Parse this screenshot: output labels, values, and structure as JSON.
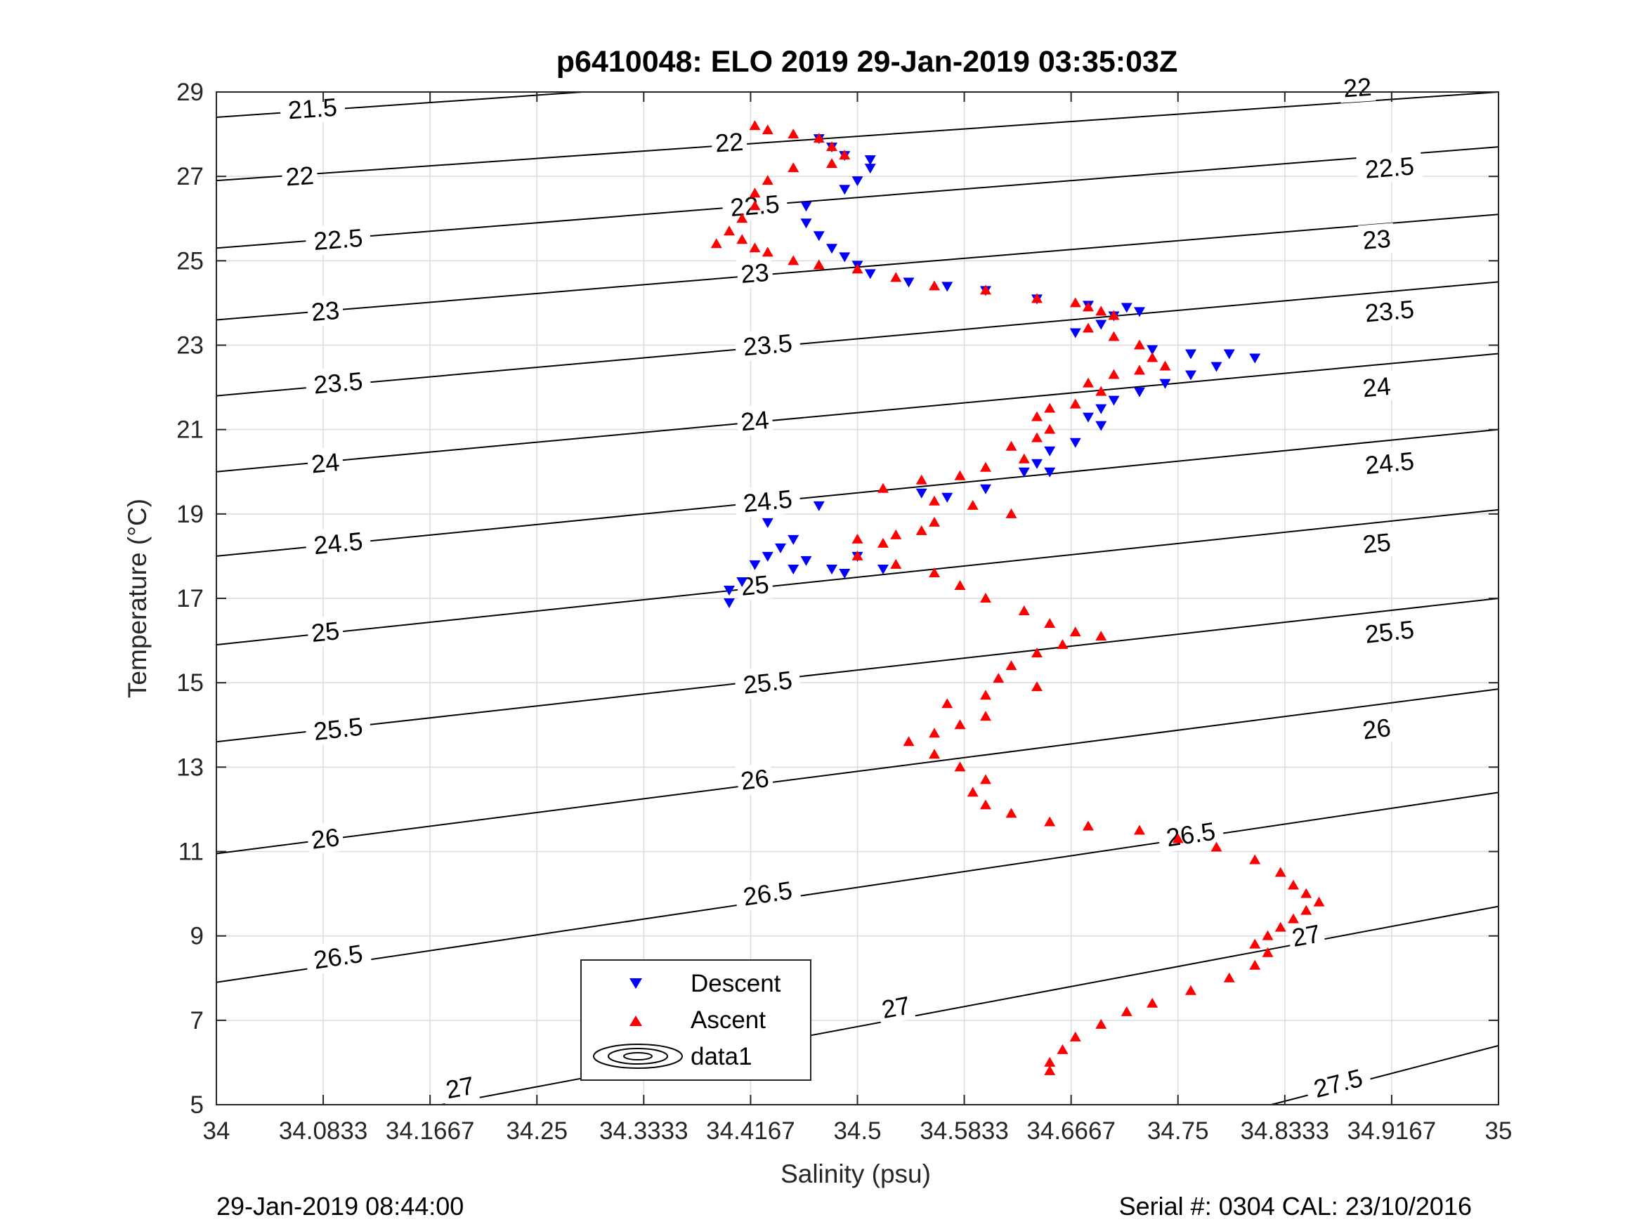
{
  "footer": {
    "left": "29-Jan-2019 08:44:00",
    "right": "Serial #: 0304  CAL: 23/10/2016"
  },
  "chart_data": {
    "type": "scatter",
    "title": "p6410048: ELO 2019 29-Jan-2019 03:35:03Z",
    "xlabel": "Salinity (psu)",
    "ylabel": "Temperature (°C)",
    "xlim": [
      34,
      35
    ],
    "ylim": [
      5,
      29
    ],
    "x_ticks": [
      "34",
      "34.0833",
      "34.1667",
      "34.25",
      "34.3333",
      "34.4167",
      "34.5",
      "34.5833",
      "34.6667",
      "34.75",
      "34.8333",
      "34.9167",
      "35"
    ],
    "y_ticks": [
      "5",
      "7",
      "9",
      "11",
      "13",
      "15",
      "17",
      "19",
      "21",
      "23",
      "25",
      "27",
      "29"
    ],
    "grid": true,
    "legend": {
      "placement": "bottom-center"
    },
    "colors": {
      "descent": "#0000ff",
      "ascent": "#ff0000",
      "contour": "#000000",
      "grid": "#dcdcdc"
    },
    "series": [
      {
        "name": "Descent",
        "marker": "triangle-down",
        "points": [
          [
            34.47,
            27.9
          ],
          [
            34.48,
            27.7
          ],
          [
            34.49,
            27.5
          ],
          [
            34.51,
            27.4
          ],
          [
            34.51,
            27.2
          ],
          [
            34.5,
            26.9
          ],
          [
            34.49,
            26.7
          ],
          [
            34.46,
            26.3
          ],
          [
            34.46,
            25.9
          ],
          [
            34.47,
            25.6
          ],
          [
            34.48,
            25.3
          ],
          [
            34.49,
            25.1
          ],
          [
            34.5,
            24.9
          ],
          [
            34.51,
            24.7
          ],
          [
            34.54,
            24.5
          ],
          [
            34.57,
            24.4
          ],
          [
            34.6,
            24.3
          ],
          [
            34.64,
            24.1
          ],
          [
            34.68,
            23.95
          ],
          [
            34.71,
            23.9
          ],
          [
            34.72,
            23.8
          ],
          [
            34.7,
            23.7
          ],
          [
            34.69,
            23.5
          ],
          [
            34.67,
            23.3
          ],
          [
            34.73,
            22.9
          ],
          [
            34.76,
            22.8
          ],
          [
            34.79,
            22.8
          ],
          [
            34.81,
            22.7
          ],
          [
            34.78,
            22.5
          ],
          [
            34.76,
            22.3
          ],
          [
            34.74,
            22.1
          ],
          [
            34.72,
            21.9
          ],
          [
            34.7,
            21.7
          ],
          [
            34.69,
            21.5
          ],
          [
            34.68,
            21.3
          ],
          [
            34.69,
            21.1
          ],
          [
            34.67,
            20.7
          ],
          [
            34.65,
            20.5
          ],
          [
            34.64,
            20.2
          ],
          [
            34.63,
            20.0
          ],
          [
            34.65,
            20.0
          ],
          [
            34.6,
            19.6
          ],
          [
            34.57,
            19.4
          ],
          [
            34.55,
            19.5
          ],
          [
            34.47,
            19.2
          ],
          [
            34.43,
            18.8
          ],
          [
            34.45,
            18.4
          ],
          [
            34.44,
            18.2
          ],
          [
            34.43,
            18.0
          ],
          [
            34.46,
            17.9
          ],
          [
            34.42,
            17.8
          ],
          [
            34.45,
            17.7
          ],
          [
            34.48,
            17.7
          ],
          [
            34.49,
            17.6
          ],
          [
            34.52,
            17.7
          ],
          [
            34.5,
            18.0
          ],
          [
            34.41,
            17.4
          ],
          [
            34.4,
            17.2
          ],
          [
            34.4,
            16.9
          ]
        ]
      },
      {
        "name": "Ascent",
        "marker": "triangle-up",
        "points": [
          [
            34.42,
            28.2
          ],
          [
            34.43,
            28.1
          ],
          [
            34.45,
            28.0
          ],
          [
            34.47,
            27.9
          ],
          [
            34.48,
            27.7
          ],
          [
            34.49,
            27.5
          ],
          [
            34.48,
            27.3
          ],
          [
            34.45,
            27.2
          ],
          [
            34.43,
            26.9
          ],
          [
            34.42,
            26.6
          ],
          [
            34.42,
            26.3
          ],
          [
            34.41,
            26.0
          ],
          [
            34.4,
            25.7
          ],
          [
            34.41,
            25.5
          ],
          [
            34.39,
            25.4
          ],
          [
            34.42,
            25.3
          ],
          [
            34.43,
            25.2
          ],
          [
            34.45,
            25.0
          ],
          [
            34.47,
            24.9
          ],
          [
            34.5,
            24.8
          ],
          [
            34.53,
            24.6
          ],
          [
            34.56,
            24.4
          ],
          [
            34.6,
            24.3
          ],
          [
            34.64,
            24.1
          ],
          [
            34.67,
            24.0
          ],
          [
            34.68,
            23.9
          ],
          [
            34.69,
            23.8
          ],
          [
            34.7,
            23.7
          ],
          [
            34.68,
            23.4
          ],
          [
            34.7,
            23.2
          ],
          [
            34.72,
            23.0
          ],
          [
            34.73,
            22.7
          ],
          [
            34.74,
            22.5
          ],
          [
            34.72,
            22.4
          ],
          [
            34.7,
            22.3
          ],
          [
            34.68,
            22.1
          ],
          [
            34.69,
            21.9
          ],
          [
            34.67,
            21.6
          ],
          [
            34.65,
            21.5
          ],
          [
            34.64,
            21.3
          ],
          [
            34.65,
            21.0
          ],
          [
            34.64,
            20.8
          ],
          [
            34.62,
            20.6
          ],
          [
            34.63,
            20.3
          ],
          [
            34.6,
            20.1
          ],
          [
            34.58,
            19.9
          ],
          [
            34.55,
            19.8
          ],
          [
            34.52,
            19.6
          ],
          [
            34.56,
            19.3
          ],
          [
            34.59,
            19.2
          ],
          [
            34.62,
            19.0
          ],
          [
            34.56,
            18.8
          ],
          [
            34.55,
            18.6
          ],
          [
            34.53,
            18.5
          ],
          [
            34.52,
            18.3
          ],
          [
            34.5,
            18.4
          ],
          [
            34.5,
            18.0
          ],
          [
            34.53,
            17.8
          ],
          [
            34.56,
            17.6
          ],
          [
            34.58,
            17.3
          ],
          [
            34.6,
            17.0
          ],
          [
            34.63,
            16.7
          ],
          [
            34.65,
            16.4
          ],
          [
            34.67,
            16.2
          ],
          [
            34.69,
            16.1
          ],
          [
            34.66,
            15.9
          ],
          [
            34.64,
            15.7
          ],
          [
            34.62,
            15.4
          ],
          [
            34.61,
            15.1
          ],
          [
            34.64,
            14.9
          ],
          [
            34.6,
            14.7
          ],
          [
            34.57,
            14.5
          ],
          [
            34.6,
            14.2
          ],
          [
            34.58,
            14.0
          ],
          [
            34.56,
            13.8
          ],
          [
            34.54,
            13.6
          ],
          [
            34.56,
            13.3
          ],
          [
            34.58,
            13.0
          ],
          [
            34.6,
            12.7
          ],
          [
            34.59,
            12.4
          ],
          [
            34.6,
            12.1
          ],
          [
            34.62,
            11.9
          ],
          [
            34.65,
            11.7
          ],
          [
            34.68,
            11.6
          ],
          [
            34.72,
            11.5
          ],
          [
            34.75,
            11.3
          ],
          [
            34.78,
            11.1
          ],
          [
            34.81,
            10.8
          ],
          [
            34.83,
            10.5
          ],
          [
            34.84,
            10.2
          ],
          [
            34.85,
            10.0
          ],
          [
            34.86,
            9.8
          ],
          [
            34.85,
            9.6
          ],
          [
            34.84,
            9.4
          ],
          [
            34.83,
            9.2
          ],
          [
            34.82,
            9.0
          ],
          [
            34.81,
            8.8
          ],
          [
            34.82,
            8.6
          ],
          [
            34.81,
            8.3
          ],
          [
            34.79,
            8.0
          ],
          [
            34.76,
            7.7
          ],
          [
            34.73,
            7.4
          ],
          [
            34.71,
            7.2
          ],
          [
            34.69,
            6.9
          ],
          [
            34.67,
            6.6
          ],
          [
            34.66,
            6.3
          ],
          [
            34.65,
            6.0
          ],
          [
            34.65,
            5.8
          ]
        ]
      }
    ],
    "legend_entries": [
      {
        "label": "Descent",
        "series": "Descent"
      },
      {
        "label": "Ascent",
        "series": "Ascent"
      },
      {
        "label": "data1",
        "series": "contour"
      }
    ],
    "isopycnals": {
      "label": "data1",
      "lines": [
        {
          "value": "21.5",
          "y_at_34": 28.4,
          "y_at_35": 30.5
        },
        {
          "value": "22",
          "y_at_34": 26.9,
          "y_at_35": 29.0
        },
        {
          "value": "22.5",
          "y_at_34": 25.3,
          "y_at_35": 27.7
        },
        {
          "value": "23",
          "y_at_34": 23.6,
          "y_at_35": 26.1
        },
        {
          "value": "23.5",
          "y_at_34": 21.8,
          "y_at_35": 24.5
        },
        {
          "value": "24",
          "y_at_34": 20.0,
          "y_at_35": 22.8
        },
        {
          "value": "24.5",
          "y_at_34": 18.0,
          "y_at_35": 21.0
        },
        {
          "value": "25",
          "y_at_34": 15.9,
          "y_at_35": 19.1
        },
        {
          "value": "25.5",
          "y_at_34": 13.6,
          "y_at_35": 17.0
        },
        {
          "value": "26",
          "y_at_34": 10.95,
          "y_at_35": 14.85
        },
        {
          "value": "26.5",
          "y_at_34": 7.9,
          "y_at_35": 12.4
        },
        {
          "value": "27",
          "y_at_34": 4.0,
          "y_at_35": 9.7
        },
        {
          "value": "27.5",
          "y_at_34": -1.5,
          "y_at_35": 6.4
        }
      ],
      "labels": [
        {
          "text": "21.5",
          "s": 34.075,
          "t": 28.6
        },
        {
          "text": "22",
          "s": 34.4,
          "t": 27.8
        },
        {
          "text": "22",
          "s": 34.89,
          "t": 29.1
        },
        {
          "text": "22",
          "s": 34.065,
          "t": 27.0
        },
        {
          "text": "22.5",
          "s": 34.42,
          "t": 26.3
        },
        {
          "text": "22.5",
          "s": 34.915,
          "t": 27.2
        },
        {
          "text": "22.5",
          "s": 34.095,
          "t": 25.5
        },
        {
          "text": "23",
          "s": 34.42,
          "t": 24.7
        },
        {
          "text": "23",
          "s": 34.905,
          "t": 25.5
        },
        {
          "text": "23",
          "s": 34.085,
          "t": 23.8
        },
        {
          "text": "23.5",
          "s": 34.43,
          "t": 23.0
        },
        {
          "text": "23.5",
          "s": 34.915,
          "t": 23.8
        },
        {
          "text": "23.5",
          "s": 34.095,
          "t": 22.1
        },
        {
          "text": "24",
          "s": 34.42,
          "t": 21.2
        },
        {
          "text": "24",
          "s": 34.905,
          "t": 22.0
        },
        {
          "text": "24",
          "s": 34.085,
          "t": 20.2
        },
        {
          "text": "24.5",
          "s": 34.43,
          "t": 19.3
        },
        {
          "text": "24.5",
          "s": 34.915,
          "t": 20.2
        },
        {
          "text": "24.5",
          "s": 34.095,
          "t": 18.3
        },
        {
          "text": "25",
          "s": 34.42,
          "t": 17.3
        },
        {
          "text": "25",
          "s": 34.905,
          "t": 18.3
        },
        {
          "text": "25",
          "s": 34.085,
          "t": 16.2
        },
        {
          "text": "25.5",
          "s": 34.43,
          "t": 15.0
        },
        {
          "text": "25.5",
          "s": 34.915,
          "t": 16.2
        },
        {
          "text": "25.5",
          "s": 34.095,
          "t": 13.9
        },
        {
          "text": "26",
          "s": 34.42,
          "t": 12.7
        },
        {
          "text": "26",
          "s": 34.905,
          "t": 13.9
        },
        {
          "text": "26",
          "s": 34.085,
          "t": 11.3
        },
        {
          "text": "26.5",
          "s": 34.43,
          "t": 10.0
        },
        {
          "text": "26.5",
          "s": 34.76,
          "t": 11.4
        },
        {
          "text": "26.5",
          "s": 34.095,
          "t": 8.5
        },
        {
          "text": "27",
          "s": 34.53,
          "t": 7.3
        },
        {
          "text": "27",
          "s": 34.85,
          "t": 9.0
        },
        {
          "text": "27",
          "s": 34.19,
          "t": 5.4
        },
        {
          "text": "27.5",
          "s": 34.875,
          "t": 5.5
        }
      ]
    }
  }
}
